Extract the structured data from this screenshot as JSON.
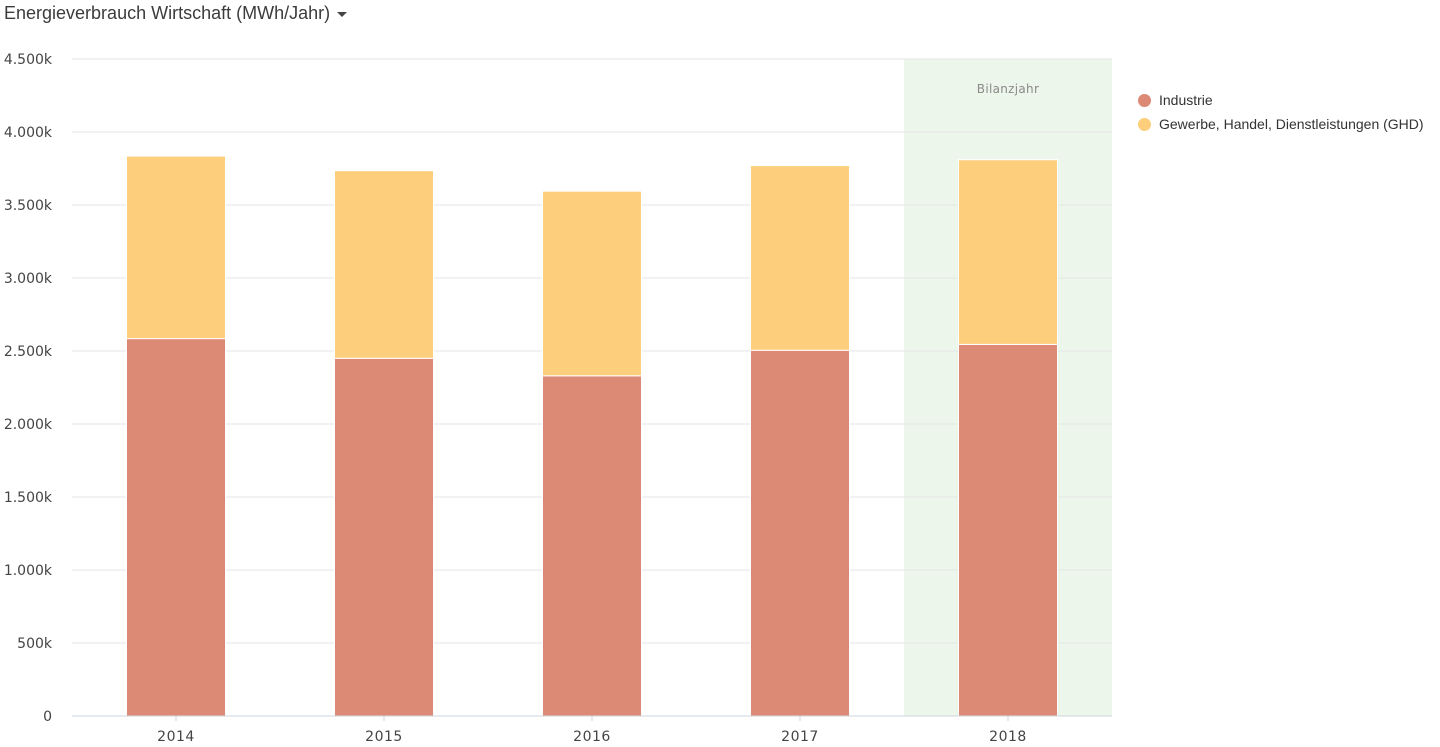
{
  "header": {
    "title": "Energieverbrauch Wirtschaft (MWh/Jahr)",
    "dropdown_icon": "caret-down-icon"
  },
  "colors": {
    "industrie": "#dc8a76",
    "ghd": "#fdcf7d",
    "band": "#edf6ea",
    "grid": "#e6e6e6"
  },
  "chart_data": {
    "type": "bar",
    "stacked": true,
    "title": "Energieverbrauch Wirtschaft (MWh/Jahr)",
    "categories": [
      "2014",
      "2015",
      "2016",
      "2017",
      "2018"
    ],
    "series": [
      {
        "name": "Industrie",
        "values": [
          2585,
          2450,
          2330,
          2505,
          2545
        ]
      },
      {
        "name": "Gewerbe, Handel, Dienstleistungen (GHD)",
        "values": [
          1250,
          1285,
          1265,
          1265,
          1265
        ]
      }
    ],
    "unit_note": "values in thousands (k) MWh",
    "ylim": [
      0,
      4500
    ],
    "yticks": [
      0,
      500,
      1000,
      1500,
      2000,
      2500,
      3000,
      3500,
      4000,
      4500
    ],
    "ytick_labels": [
      "0",
      "500k",
      "1.000k",
      "1.500k",
      "2.000k",
      "2.500k",
      "3.000k",
      "3.500k",
      "4.000k",
      "4.500k"
    ],
    "highlight": {
      "category": "2018",
      "label": "Bilanzjahr"
    },
    "legend_position": "top-right"
  }
}
